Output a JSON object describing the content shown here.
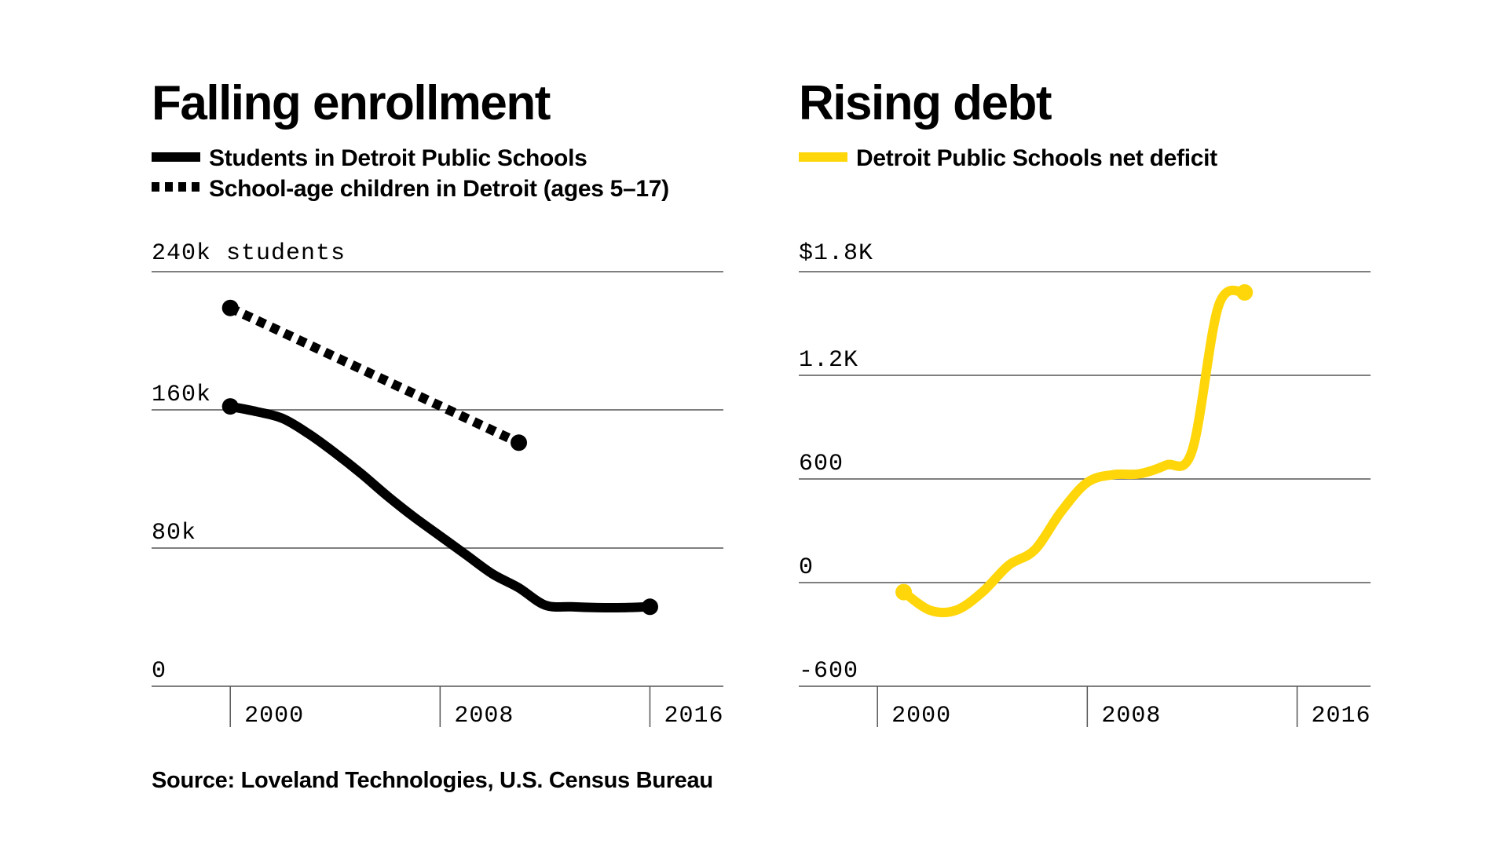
{
  "source": "Source: Loveland Technologies, U.S. Census Bureau",
  "colors": {
    "ink": "#000000",
    "deficit": "#FFD60A",
    "grid": "#555555"
  },
  "chart_data": [
    {
      "type": "line",
      "title": "Falling enrollment",
      "ylabel": "",
      "y_top_label": "240k students",
      "y_ticks": [
        0,
        80000,
        160000
      ],
      "y_tick_labels": [
        "0",
        "80k",
        "160k"
      ],
      "x_ticks": [
        2000,
        2008,
        2016
      ],
      "x_tick_labels": [
        "2000",
        "2008",
        "2016"
      ],
      "xlim": [
        1997,
        2018.8
      ],
      "ylim": [
        0,
        240000
      ],
      "grid": true,
      "series": [
        {
          "name": "Students in Detroit Public Schools",
          "style": "solid",
          "x": [
            2000,
            2001,
            2002,
            2003,
            2004,
            2005,
            2006,
            2007,
            2008,
            2009,
            2010,
            2011,
            2012,
            2013,
            2014,
            2015,
            2016
          ],
          "y": [
            162000,
            159000,
            155000,
            146000,
            135000,
            123000,
            110000,
            98000,
            87000,
            76000,
            65000,
            57000,
            47000,
            46000,
            45500,
            45500,
            46000
          ]
        },
        {
          "name": "School-age children in Detroit (ages 5–17)",
          "style": "dotted",
          "x": [
            2000,
            2011
          ],
          "y": [
            219000,
            141000
          ]
        }
      ]
    },
    {
      "type": "line",
      "title": "Rising debt",
      "ylabel": "",
      "y_top_label": "$1.8K",
      "y_ticks": [
        -600,
        0,
        600,
        1200
      ],
      "y_tick_labels": [
        "-600",
        "0",
        "600",
        "1.2K"
      ],
      "x_ticks": [
        2000,
        2008,
        2016
      ],
      "x_tick_labels": [
        "2000",
        "2008",
        "2016"
      ],
      "xlim": [
        1997,
        2018.8
      ],
      "ylim": [
        -600,
        1800
      ],
      "grid": true,
      "series": [
        {
          "name": "Detroit Public Schools net deficit",
          "style": "solid",
          "x": [
            2001,
            2002,
            2003,
            2004,
            2005,
            2006,
            2007,
            2008,
            2009,
            2010,
            2011,
            2012,
            2013,
            2014
          ],
          "y": [
            -55,
            -160,
            -160,
            -55,
            100,
            190,
            410,
            580,
            625,
            630,
            680,
            765,
            1600,
            1680
          ]
        }
      ]
    }
  ]
}
